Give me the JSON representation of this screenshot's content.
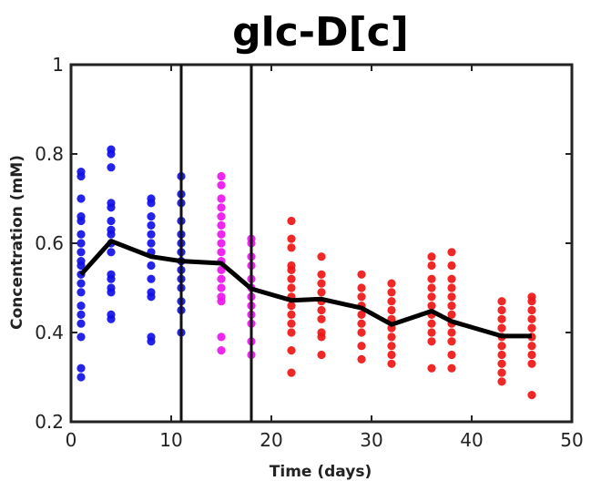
{
  "chart_data": {
    "type": "scatter",
    "title": "glc-D[c]",
    "xlabel": "Time (days)",
    "ylabel": "Concentration (mM)",
    "xlim": [
      0,
      50
    ],
    "ylim": [
      0.2,
      1
    ],
    "xticks": [
      "0",
      "10",
      "20",
      "30",
      "40",
      "50"
    ],
    "yticks": [
      "0.2",
      "0.4",
      "0.6",
      "0.8",
      "1"
    ],
    "grid": false,
    "vlines": [
      11,
      18
    ],
    "colors": {
      "blue": "#1010e8",
      "magenta": "#ee14ee",
      "red": "#ee1515",
      "mean": "#000000"
    },
    "series": [
      {
        "color": "blue",
        "points": [
          [
            1,
            0.3
          ],
          [
            1,
            0.32
          ],
          [
            1,
            0.39
          ],
          [
            1,
            0.42
          ],
          [
            1,
            0.44
          ],
          [
            1,
            0.46
          ],
          [
            1,
            0.49
          ],
          [
            1,
            0.51
          ],
          [
            1,
            0.53
          ],
          [
            1,
            0.55
          ],
          [
            1,
            0.56
          ],
          [
            1,
            0.58
          ],
          [
            1,
            0.6
          ],
          [
            1,
            0.62
          ],
          [
            1,
            0.65
          ],
          [
            1,
            0.66
          ],
          [
            1,
            0.7
          ],
          [
            1,
            0.75
          ],
          [
            1,
            0.76
          ],
          [
            4,
            0.43
          ],
          [
            4,
            0.44
          ],
          [
            4,
            0.49
          ],
          [
            4,
            0.5
          ],
          [
            4,
            0.52
          ],
          [
            4,
            0.53
          ],
          [
            4,
            0.58
          ],
          [
            4,
            0.6
          ],
          [
            4,
            0.62
          ],
          [
            4,
            0.63
          ],
          [
            4,
            0.65
          ],
          [
            4,
            0.68
          ],
          [
            4,
            0.69
          ],
          [
            4,
            0.77
          ],
          [
            4,
            0.8
          ],
          [
            4,
            0.81
          ],
          [
            8,
            0.38
          ],
          [
            8,
            0.39
          ],
          [
            8,
            0.48
          ],
          [
            8,
            0.49
          ],
          [
            8,
            0.52
          ],
          [
            8,
            0.55
          ],
          [
            8,
            0.58
          ],
          [
            8,
            0.6
          ],
          [
            8,
            0.62
          ],
          [
            8,
            0.64
          ],
          [
            8,
            0.66
          ],
          [
            8,
            0.69
          ],
          [
            8,
            0.7
          ],
          [
            11,
            0.4
          ],
          [
            11,
            0.45
          ],
          [
            11,
            0.47
          ],
          [
            11,
            0.5
          ],
          [
            11,
            0.52
          ],
          [
            11,
            0.54
          ],
          [
            11,
            0.56
          ],
          [
            11,
            0.58
          ],
          [
            11,
            0.6
          ],
          [
            11,
            0.62
          ],
          [
            11,
            0.65
          ],
          [
            11,
            0.69
          ],
          [
            11,
            0.71
          ],
          [
            11,
            0.75
          ]
        ]
      },
      {
        "color": "magenta",
        "points": [
          [
            15,
            0.36
          ],
          [
            15,
            0.39
          ],
          [
            15,
            0.47
          ],
          [
            15,
            0.48
          ],
          [
            15,
            0.5
          ],
          [
            15,
            0.52
          ],
          [
            15,
            0.54
          ],
          [
            15,
            0.56
          ],
          [
            15,
            0.58
          ],
          [
            15,
            0.6
          ],
          [
            15,
            0.62
          ],
          [
            15,
            0.64
          ],
          [
            15,
            0.66
          ],
          [
            15,
            0.68
          ],
          [
            15,
            0.7
          ],
          [
            15,
            0.73
          ],
          [
            15,
            0.75
          ],
          [
            18,
            0.35
          ],
          [
            18,
            0.38
          ],
          [
            18,
            0.42
          ],
          [
            18,
            0.44
          ],
          [
            18,
            0.46
          ],
          [
            18,
            0.48
          ],
          [
            18,
            0.5
          ],
          [
            18,
            0.52
          ],
          [
            18,
            0.55
          ],
          [
            18,
            0.57
          ],
          [
            18,
            0.6
          ],
          [
            18,
            0.61
          ]
        ]
      },
      {
        "color": "red",
        "points": [
          [
            22,
            0.31
          ],
          [
            22,
            0.36
          ],
          [
            22,
            0.4
          ],
          [
            22,
            0.42
          ],
          [
            22,
            0.44
          ],
          [
            22,
            0.46
          ],
          [
            22,
            0.48
          ],
          [
            22,
            0.5
          ],
          [
            22,
            0.52
          ],
          [
            22,
            0.54
          ],
          [
            22,
            0.55
          ],
          [
            22,
            0.59
          ],
          [
            22,
            0.61
          ],
          [
            22,
            0.65
          ],
          [
            25,
            0.35
          ],
          [
            25,
            0.39
          ],
          [
            25,
            0.4
          ],
          [
            25,
            0.43
          ],
          [
            25,
            0.45
          ],
          [
            25,
            0.47
          ],
          [
            25,
            0.49
          ],
          [
            25,
            0.51
          ],
          [
            25,
            0.53
          ],
          [
            25,
            0.57
          ],
          [
            29,
            0.34
          ],
          [
            29,
            0.37
          ],
          [
            29,
            0.4
          ],
          [
            29,
            0.42
          ],
          [
            29,
            0.44
          ],
          [
            29,
            0.46
          ],
          [
            29,
            0.48
          ],
          [
            29,
            0.5
          ],
          [
            29,
            0.53
          ],
          [
            32,
            0.33
          ],
          [
            32,
            0.35
          ],
          [
            32,
            0.37
          ],
          [
            32,
            0.39
          ],
          [
            32,
            0.41
          ],
          [
            32,
            0.43
          ],
          [
            32,
            0.45
          ],
          [
            32,
            0.47
          ],
          [
            32,
            0.49
          ],
          [
            32,
            0.51
          ],
          [
            36,
            0.32
          ],
          [
            36,
            0.38
          ],
          [
            36,
            0.4
          ],
          [
            36,
            0.42
          ],
          [
            36,
            0.44
          ],
          [
            36,
            0.46
          ],
          [
            36,
            0.48
          ],
          [
            36,
            0.5
          ],
          [
            36,
            0.52
          ],
          [
            36,
            0.55
          ],
          [
            36,
            0.57
          ],
          [
            38,
            0.32
          ],
          [
            38,
            0.35
          ],
          [
            38,
            0.38
          ],
          [
            38,
            0.4
          ],
          [
            38,
            0.42
          ],
          [
            38,
            0.44
          ],
          [
            38,
            0.46
          ],
          [
            38,
            0.48
          ],
          [
            38,
            0.5
          ],
          [
            38,
            0.52
          ],
          [
            38,
            0.55
          ],
          [
            38,
            0.58
          ],
          [
            43,
            0.29
          ],
          [
            43,
            0.31
          ],
          [
            43,
            0.33
          ],
          [
            43,
            0.35
          ],
          [
            43,
            0.37
          ],
          [
            43,
            0.39
          ],
          [
            43,
            0.41
          ],
          [
            43,
            0.43
          ],
          [
            43,
            0.45
          ],
          [
            43,
            0.47
          ],
          [
            46,
            0.26
          ],
          [
            46,
            0.33
          ],
          [
            46,
            0.35
          ],
          [
            46,
            0.37
          ],
          [
            46,
            0.39
          ],
          [
            46,
            0.41
          ],
          [
            46,
            0.43
          ],
          [
            46,
            0.45
          ],
          [
            46,
            0.47
          ],
          [
            46,
            0.48
          ]
        ]
      }
    ],
    "mean_line": {
      "color": "mean",
      "points": [
        [
          1,
          0.53
        ],
        [
          4,
          0.605
        ],
        [
          8,
          0.57
        ],
        [
          11,
          0.56
        ],
        [
          15,
          0.555
        ],
        [
          18,
          0.498
        ],
        [
          22,
          0.472
        ],
        [
          25,
          0.475
        ],
        [
          29,
          0.455
        ],
        [
          32,
          0.418
        ],
        [
          36,
          0.448
        ],
        [
          38,
          0.425
        ],
        [
          43,
          0.392
        ],
        [
          46,
          0.392
        ]
      ]
    }
  }
}
